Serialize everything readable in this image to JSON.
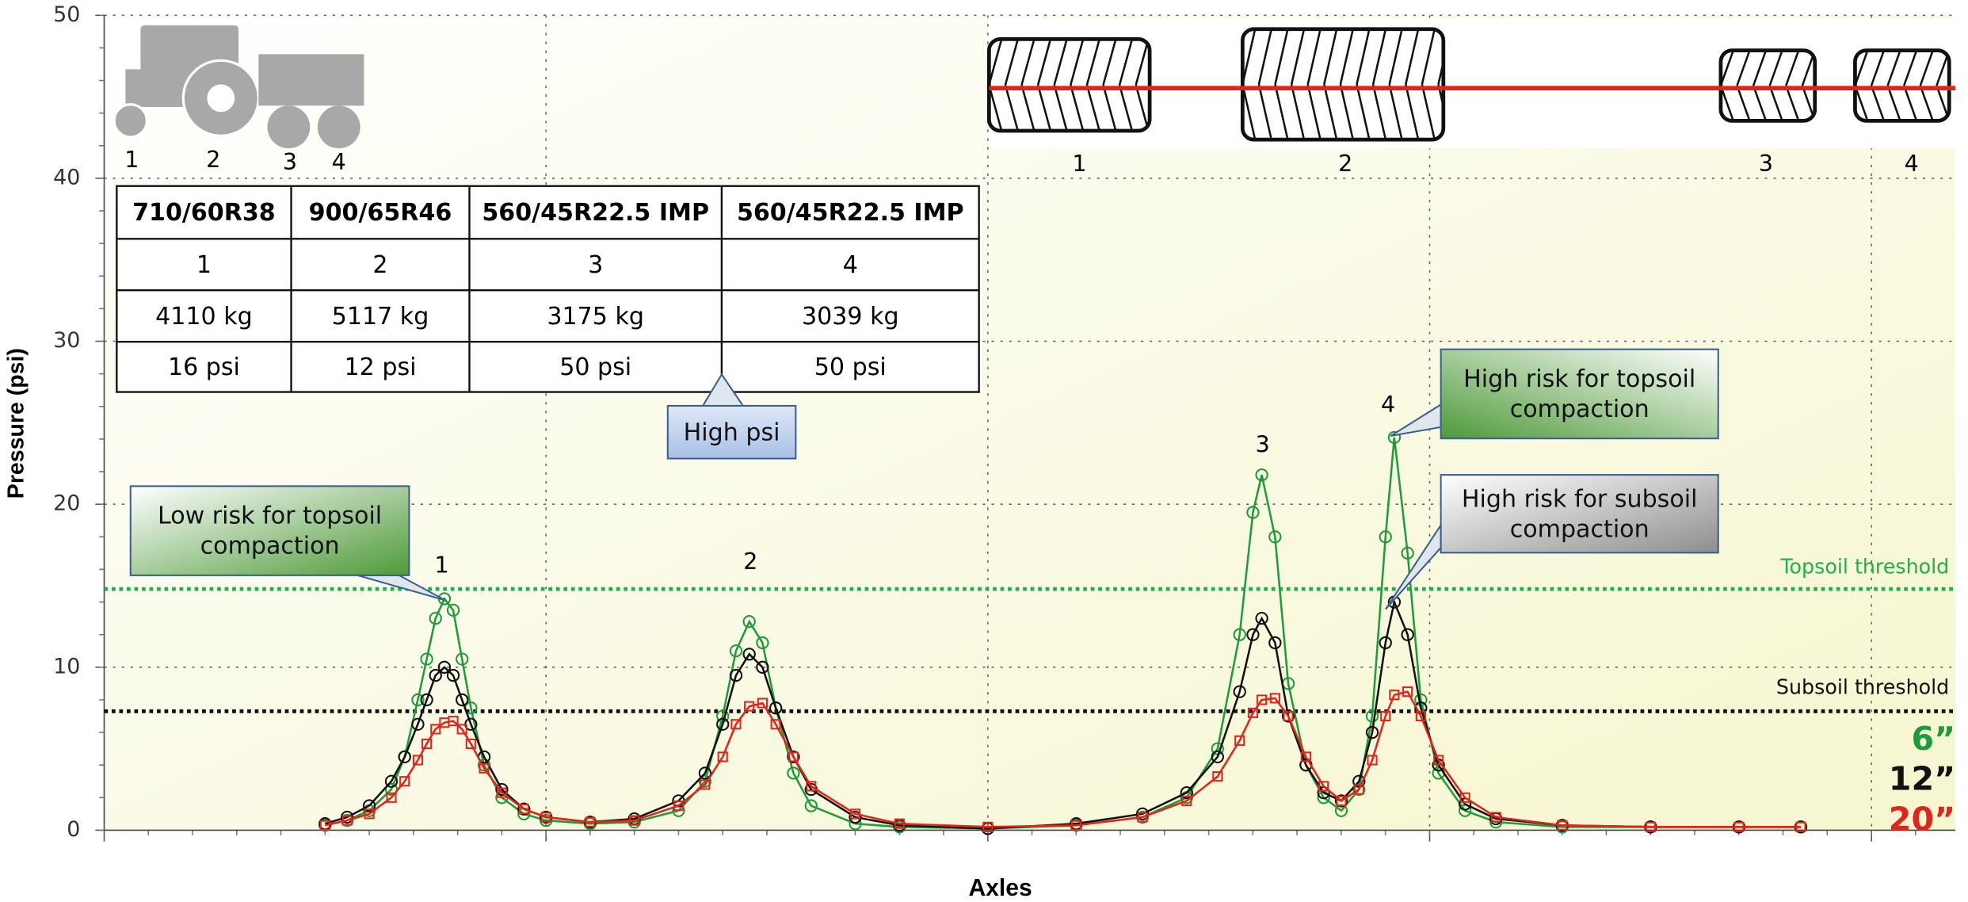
{
  "chart_data": {
    "type": "line",
    "xlabel": "Axles",
    "ylabel": "Pressure (psi)",
    "xlim": [
      0,
      4.19
    ],
    "xticks": [
      0,
      1,
      2,
      3,
      4
    ],
    "ylim": [
      0,
      50
    ],
    "yticks": [
      0,
      10,
      20,
      30,
      40,
      50
    ],
    "grid": true,
    "x": [
      0.5,
      0.55,
      0.6,
      0.65,
      0.68,
      0.71,
      0.73,
      0.75,
      0.77,
      0.79,
      0.81,
      0.83,
      0.86,
      0.9,
      0.95,
      1.0,
      1.1,
      1.2,
      1.3,
      1.36,
      1.4,
      1.43,
      1.46,
      1.49,
      1.52,
      1.56,
      1.6,
      1.7,
      1.8,
      2.0,
      2.2,
      2.35,
      2.45,
      2.52,
      2.57,
      2.6,
      2.62,
      2.65,
      2.68,
      2.72,
      2.76,
      2.8,
      2.84,
      2.87,
      2.9,
      2.92,
      2.95,
      2.98,
      3.02,
      3.08,
      3.15,
      3.3,
      3.5,
      3.7,
      3.84
    ],
    "series": [
      {
        "name": "6”",
        "color": "#1f9b3a",
        "marker": "circle",
        "values": [
          0.3,
          0.6,
          1.2,
          2.5,
          4.5,
          8,
          10.5,
          13,
          14.2,
          13.5,
          10.5,
          7.5,
          4,
          2,
          1,
          0.6,
          0.4,
          0.5,
          1.2,
          3,
          7,
          11,
          12.8,
          11.5,
          7.5,
          3.5,
          1.5,
          0.4,
          0.2,
          0.1,
          0.3,
          0.8,
          2,
          5,
          12,
          19.5,
          21.8,
          18,
          9,
          4,
          2,
          1.2,
          2.5,
          7,
          18,
          24.1,
          17,
          8,
          3.5,
          1.2,
          0.5,
          0.2,
          0.2,
          0.2,
          0.2
        ]
      },
      {
        "name": "12”",
        "color": "#111111",
        "marker": "circle",
        "values": [
          0.4,
          0.8,
          1.5,
          3,
          4.5,
          6.5,
          8,
          9.5,
          10,
          9.5,
          8,
          6.5,
          4.5,
          2.5,
          1.3,
          0.8,
          0.5,
          0.7,
          1.8,
          3.5,
          6.5,
          9.5,
          10.8,
          10,
          7.5,
          4.5,
          2.5,
          0.8,
          0.3,
          0.1,
          0.4,
          1,
          2.3,
          4.5,
          8.5,
          12,
          13,
          11.5,
          7,
          4,
          2.3,
          1.8,
          3,
          6,
          11.5,
          14,
          12,
          7.5,
          4,
          1.6,
          0.7,
          0.3,
          0.2,
          0.2,
          0.2
        ]
      },
      {
        "name": "20”",
        "color": "#e3241b",
        "marker": "square",
        "values": [
          0.3,
          0.6,
          1,
          2,
          3,
          4.3,
          5.3,
          6.2,
          6.6,
          6.7,
          6.2,
          5.3,
          3.8,
          2.3,
          1.3,
          0.8,
          0.5,
          0.6,
          1.5,
          2.8,
          4.5,
          6.5,
          7.6,
          7.8,
          6.5,
          4.5,
          2.7,
          1,
          0.4,
          0.2,
          0.3,
          0.8,
          1.8,
          3.3,
          5.5,
          7.2,
          8,
          8.1,
          7,
          4.5,
          2.7,
          1.8,
          2.5,
          4.3,
          7,
          8.3,
          8.5,
          7,
          4.3,
          2,
          0.8,
          0.3,
          0.2,
          0.2,
          0.2
        ]
      }
    ],
    "thresholds": [
      {
        "label": "Topsoil threshold",
        "value": 14.8,
        "color": "#1fb04a"
      },
      {
        "label": "Subsoil threshold",
        "value": 7.3,
        "color": "#111111"
      }
    ],
    "peak_labels": [
      "1",
      "2",
      "3",
      "4"
    ]
  },
  "tractor_labels": [
    "1",
    "2",
    "3",
    "4"
  ],
  "tire_labels": [
    "1",
    "2",
    "3",
    "4"
  ],
  "table": {
    "header": [
      "710/60R38",
      "900/65R46",
      "560/45R22.5 IMP",
      "560/45R22.5 IMP"
    ],
    "rows": [
      [
        "1",
        "2",
        "3",
        "4"
      ],
      [
        "4110 kg",
        "5117 kg",
        "3175 kg",
        "3039 kg"
      ],
      [
        "16 psi",
        "12 psi",
        "50 psi",
        "50 psi"
      ]
    ]
  },
  "callouts": [
    {
      "lines": [
        "High psi"
      ]
    },
    {
      "lines": [
        "Low risk for topsoil",
        "compaction"
      ]
    },
    {
      "lines": [
        "High risk for topsoil",
        "compaction"
      ]
    },
    {
      "lines": [
        "High risk for subsoil",
        "compaction"
      ]
    }
  ]
}
